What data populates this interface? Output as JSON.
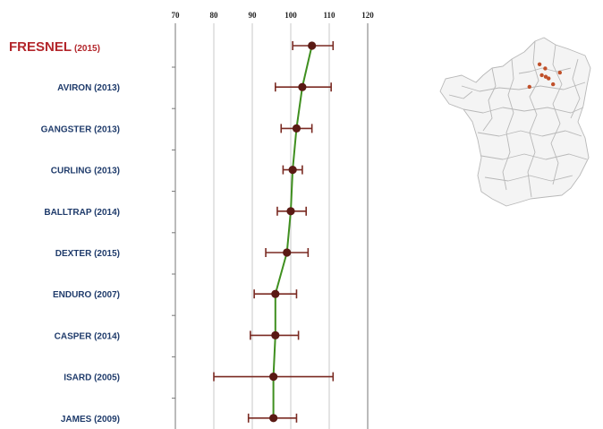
{
  "chart_data": {
    "type": "scatter",
    "title": "",
    "xlabel": "",
    "ylabel": "",
    "xlim": [
      70,
      120
    ],
    "xticks": [
      70,
      80,
      90,
      100,
      110,
      120
    ],
    "grid": true,
    "categories": [
      {
        "name": "FRESNEL",
        "year": "(2015)",
        "highlight": true
      },
      {
        "name": "AVIRON",
        "year": "(2013)"
      },
      {
        "name": "GANGSTER",
        "year": "(2013)"
      },
      {
        "name": "CURLING",
        "year": "(2013)"
      },
      {
        "name": "BALLTRAP",
        "year": "(2014)"
      },
      {
        "name": "DEXTER",
        "year": "(2015)"
      },
      {
        "name": "ENDURO",
        "year": "(2007)"
      },
      {
        "name": "CASPER",
        "year": "(2014)"
      },
      {
        "name": "ISARD",
        "year": "(2005)"
      },
      {
        "name": "JAMES",
        "year": "(2009)"
      }
    ],
    "series": [
      {
        "values": [
          105.5,
          103,
          101.5,
          100.5,
          100,
          99,
          96,
          96,
          95.5,
          95.5
        ],
        "error_low": [
          100.5,
          96,
          97.5,
          98,
          96.5,
          93.5,
          90.5,
          89.5,
          80,
          89
        ],
        "error_high": [
          111,
          110.5,
          105.5,
          103,
          104,
          104.5,
          101.5,
          102,
          111,
          101.5
        ]
      }
    ],
    "colors": {
      "highlight_label": "#b3262b",
      "label": "#1f3b6b",
      "point": "#5a1a14",
      "error_bar": "#7a2a22",
      "line": "#3f8f1f",
      "grid": "#c8c8c8",
      "axis": "#777777"
    }
  },
  "map": {
    "icon": "france-departments-map-icon",
    "locations": [
      {
        "lon": 3.7,
        "lat": 49.5
      },
      {
        "lon": 4.2,
        "lat": 49.25
      },
      {
        "lon": 5.5,
        "lat": 49.0
      },
      {
        "lon": 3.9,
        "lat": 48.85
      },
      {
        "lon": 4.25,
        "lat": 48.75
      },
      {
        "lon": 4.5,
        "lat": 48.65
      },
      {
        "lon": 4.9,
        "lat": 48.3
      },
      {
        "lon": 2.8,
        "lat": 48.15
      }
    ],
    "colors": {
      "outline": "#b8b8b8",
      "dot": "#c0502a"
    }
  }
}
